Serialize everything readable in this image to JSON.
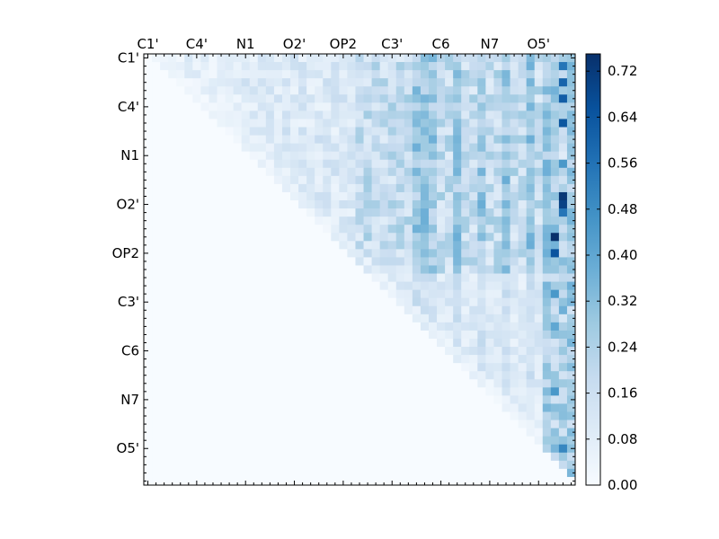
{
  "chart_data": {
    "type": "heatmap",
    "title": "",
    "xlabel": "",
    "ylabel": "",
    "n": 53,
    "tick_step": 6,
    "x_tick_labels": [
      "C1'",
      "C4'",
      "N1",
      "O2'",
      "OP2",
      "C3'",
      "C6",
      "N7",
      "O5'"
    ],
    "y_tick_labels": [
      "C1'",
      "C4'",
      "N1",
      "O2'",
      "OP2",
      "C3'",
      "C6",
      "N7",
      "O5'"
    ],
    "colorbar": {
      "min": 0.0,
      "max": 0.75,
      "ticks": [
        "0.00",
        "0.08",
        "0.16",
        "0.24",
        "0.32",
        "0.40",
        "0.48",
        "0.56",
        "0.64",
        "0.72"
      ],
      "colors": [
        "#f7fbff",
        "#deebf7",
        "#c6dbef",
        "#9ecae1",
        "#6baed6",
        "#4292c6",
        "#2171b5",
        "#08519c",
        "#08306b"
      ]
    },
    "dense_columns": [
      33,
      34,
      35,
      38,
      41,
      44,
      47,
      49,
      50,
      52
    ],
    "hot_cells": [
      {
        "row": 1,
        "col": 51,
        "value": 0.55
      },
      {
        "row": 3,
        "col": 51,
        "value": 0.6
      },
      {
        "row": 5,
        "col": 51,
        "value": 0.62
      },
      {
        "row": 8,
        "col": 51,
        "value": 0.64
      },
      {
        "row": 13,
        "col": 51,
        "value": 0.45
      },
      {
        "row": 17,
        "col": 51,
        "value": 0.73
      },
      {
        "row": 18,
        "col": 51,
        "value": 0.7
      },
      {
        "row": 19,
        "col": 51,
        "value": 0.55
      },
      {
        "row": 22,
        "col": 50,
        "value": 0.75
      },
      {
        "row": 24,
        "col": 50,
        "value": 0.65
      },
      {
        "row": 29,
        "col": 50,
        "value": 0.45
      },
      {
        "row": 33,
        "col": 50,
        "value": 0.4
      },
      {
        "row": 41,
        "col": 50,
        "value": 0.45
      },
      {
        "row": 48,
        "col": 51,
        "value": 0.5
      },
      {
        "row": 48,
        "col": 50,
        "value": 0.35
      }
    ]
  }
}
